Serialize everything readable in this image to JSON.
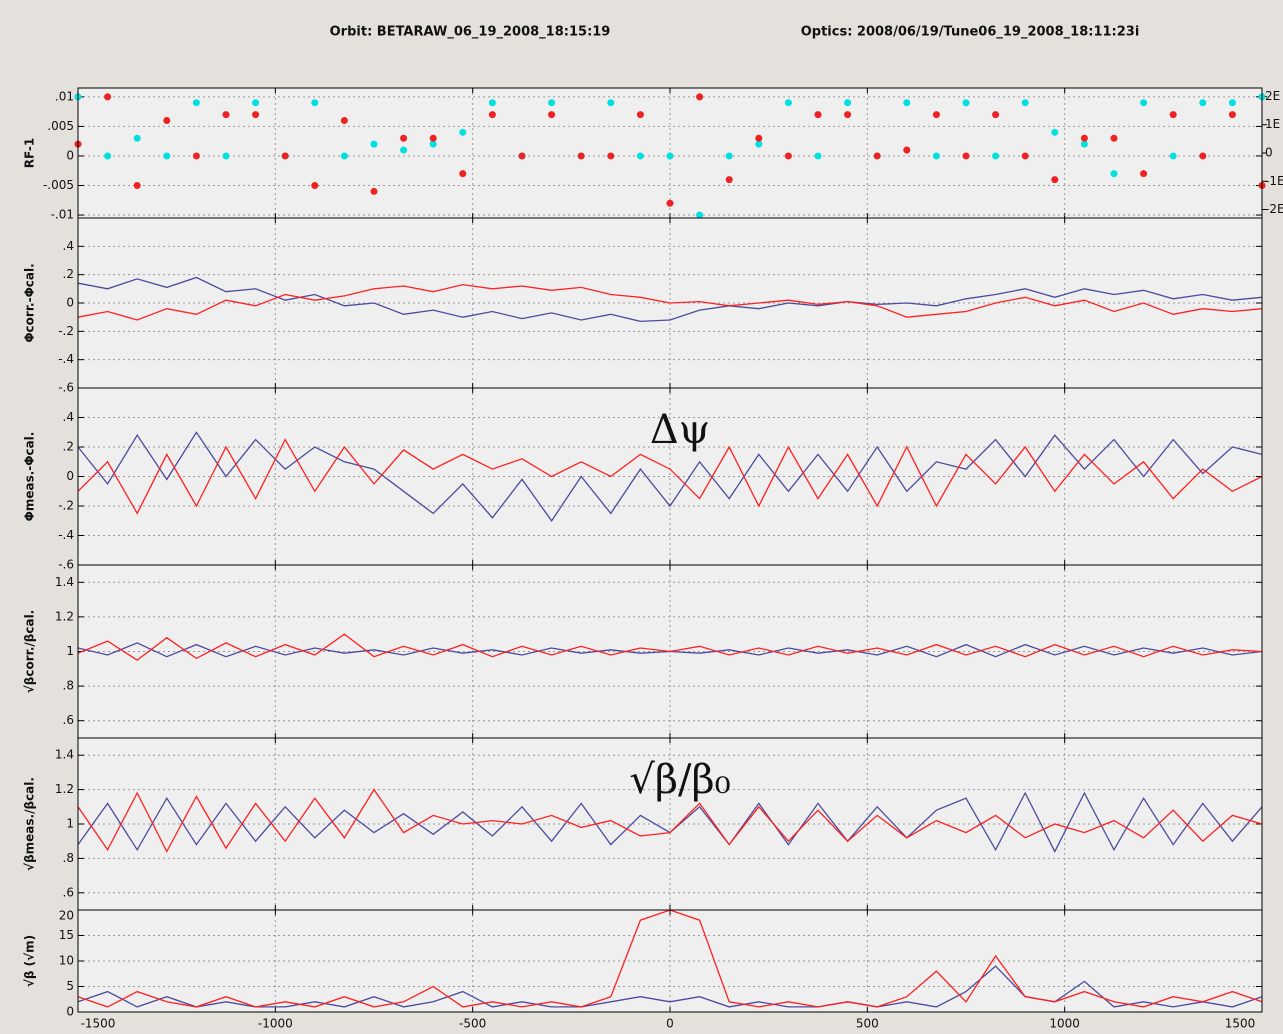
{
  "header": {
    "orbit": "Orbit: BETARAW_06_19_2008_18:15:19",
    "optics": "Optics: 2008/06/19/Tune06_19_2008_18:11:23i"
  },
  "chart_data": [
    {
      "type": "scatter",
      "y_label": "RF-1",
      "ylim": [
        -0.0105,
        0.0115
      ],
      "yticks": [
        {
          "value": 0.01,
          "label": ".01"
        },
        {
          "value": 0.005,
          "label": ".005"
        },
        0,
        {
          "value": -0.005,
          "label": "-.005"
        },
        {
          "value": -0.01,
          "label": "-.01"
        }
      ],
      "y2lim": [
        -2.3,
        2.3
      ],
      "y2ticks": [
        {
          "value": 2,
          "label": "2E"
        },
        {
          "value": 1,
          "label": "1E"
        },
        0,
        {
          "value": -1,
          "label": "-1E"
        },
        {
          "value": -2,
          "label": "-2E"
        }
      ],
      "x": [
        -1500,
        -1425,
        -1350,
        -1275,
        -1200,
        -1125,
        -1050,
        -975,
        -900,
        -825,
        -750,
        -675,
        -600,
        -525,
        -450,
        -375,
        -300,
        -225,
        -150,
        -75,
        0,
        75,
        150,
        225,
        300,
        375,
        450,
        525,
        600,
        675,
        750,
        825,
        900,
        975,
        1050,
        1125,
        1200,
        1275,
        1350,
        1425,
        1500
      ],
      "series": [
        {
          "name": "cyan",
          "color": "#00e0e0",
          "values": [
            0.01,
            0,
            0.003,
            0,
            0.009,
            0,
            0.009,
            0,
            0.009,
            0,
            0.002,
            0.001,
            0.002,
            0.004,
            0.009,
            0,
            0.009,
            0,
            0.009,
            0,
            0,
            -0.01,
            0,
            0.002,
            0.009,
            0,
            0.009,
            0,
            0.009,
            0,
            0.009,
            0,
            0.009,
            0.004,
            0.002,
            -0.003,
            0.009,
            0,
            0.009,
            0.009,
            0.01
          ]
        },
        {
          "name": "red",
          "color": "#ee2222",
          "values": [
            0.002,
            0.01,
            -0.005,
            0.006,
            0,
            0.007,
            0.007,
            0,
            -0.005,
            0.006,
            -0.006,
            0.003,
            0.003,
            -0.003,
            0.007,
            0,
            0.007,
            0,
            0,
            0.007,
            -0.008,
            0.01,
            -0.004,
            0.003,
            0,
            0.007,
            0.007,
            0,
            0.001,
            0.007,
            0,
            0.007,
            0,
            -0.004,
            0.003,
            0.003,
            -0.003,
            0.007,
            0,
            0.007,
            -0.005
          ]
        }
      ]
    },
    {
      "type": "line",
      "y_label": "Φcorr.-Φcal.",
      "ylim": [
        -0.6,
        0.6
      ],
      "yticks": [
        {
          "value": 0.4,
          "label": ".4"
        },
        {
          "value": 0.2,
          "label": ".2"
        },
        0,
        {
          "value": -0.2,
          "label": "-.2"
        },
        {
          "value": -0.4,
          "label": "-.4"
        },
        {
          "value": -0.6,
          "label": "-.6"
        }
      ],
      "x": [
        -1500,
        -1425,
        -1350,
        -1275,
        -1200,
        -1125,
        -1050,
        -975,
        -900,
        -825,
        -750,
        -675,
        -600,
        -525,
        -450,
        -375,
        -300,
        -225,
        -150,
        -75,
        0,
        75,
        150,
        225,
        300,
        375,
        450,
        525,
        600,
        675,
        750,
        825,
        900,
        975,
        1050,
        1125,
        1200,
        1275,
        1350,
        1425,
        1500
      ],
      "series": [
        {
          "name": "blue",
          "color": "#4b4b9e",
          "values": [
            0.14,
            0.1,
            0.17,
            0.11,
            0.18,
            0.08,
            0.1,
            0.02,
            0.06,
            -0.02,
            0,
            -0.08,
            -0.05,
            -0.1,
            -0.06,
            -0.11,
            -0.07,
            -0.12,
            -0.08,
            -0.13,
            -0.12,
            -0.05,
            -0.02,
            -0.04,
            0,
            -0.02,
            0.01,
            -0.01,
            0,
            -0.02,
            0.03,
            0.06,
            0.1,
            0.04,
            0.1,
            0.06,
            0.09,
            0.03,
            0.06,
            0.02,
            0.04
          ]
        },
        {
          "name": "red",
          "color": "#ff2020",
          "values": [
            -0.1,
            -0.06,
            -0.12,
            -0.04,
            -0.08,
            0.02,
            -0.02,
            0.06,
            0.02,
            0.05,
            0.1,
            0.12,
            0.08,
            0.13,
            0.1,
            0.12,
            0.09,
            0.11,
            0.06,
            0.04,
            0,
            0.01,
            -0.02,
            0,
            0.02,
            -0.01,
            0.01,
            -0.02,
            -0.1,
            -0.08,
            -0.06,
            0,
            0.04,
            -0.02,
            0.02,
            -0.06,
            0,
            -0.08,
            -0.04,
            -0.06,
            -0.04
          ]
        }
      ]
    },
    {
      "type": "line",
      "y_label": "Φmeas.-Φcal.",
      "annotation": "Δψ",
      "ylim": [
        -0.6,
        0.6
      ],
      "yticks": [
        {
          "value": 0.4,
          "label": ".4"
        },
        {
          "value": 0.2,
          "label": ".2"
        },
        0,
        {
          "value": -0.2,
          "label": "-.2"
        },
        {
          "value": -0.4,
          "label": "-.4"
        },
        {
          "value": -0.6,
          "label": "-.6"
        }
      ],
      "x": [
        -1500,
        -1425,
        -1350,
        -1275,
        -1200,
        -1125,
        -1050,
        -975,
        -900,
        -825,
        -750,
        -675,
        -600,
        -525,
        -450,
        -375,
        -300,
        -225,
        -150,
        -75,
        0,
        75,
        150,
        225,
        300,
        375,
        450,
        525,
        600,
        675,
        750,
        825,
        900,
        975,
        1050,
        1125,
        1200,
        1275,
        1350,
        1425,
        1500
      ],
      "series": [
        {
          "name": "blue",
          "color": "#4b4b9e",
          "values": [
            0.2,
            -0.05,
            0.28,
            -0.02,
            0.3,
            0,
            0.25,
            0.05,
            0.2,
            0.1,
            0.05,
            -0.1,
            -0.25,
            -0.05,
            -0.28,
            -0.02,
            -0.3,
            0,
            -0.25,
            0.05,
            -0.2,
            0.1,
            -0.15,
            0.15,
            -0.1,
            0.15,
            -0.1,
            0.2,
            -0.1,
            0.1,
            0.05,
            0.25,
            0,
            0.28,
            0.05,
            0.25,
            0,
            0.25,
            0.02,
            0.2,
            0.15
          ]
        },
        {
          "name": "red",
          "color": "#ff2020",
          "values": [
            -0.1,
            0.1,
            -0.25,
            0.15,
            -0.2,
            0.2,
            -0.15,
            0.25,
            -0.1,
            0.2,
            -0.05,
            0.18,
            0.05,
            0.15,
            0.05,
            0.12,
            0,
            0.1,
            0,
            0.15,
            0.05,
            -0.15,
            0.2,
            -0.2,
            0.2,
            -0.15,
            0.15,
            -0.2,
            0.2,
            -0.2,
            0.15,
            -0.05,
            0.2,
            -0.1,
            0.15,
            -0.05,
            0.1,
            -0.15,
            0.05,
            -0.1,
            0
          ]
        }
      ]
    },
    {
      "type": "line",
      "y_label": "√βcorr./βcal.",
      "ylim": [
        0.5,
        1.5
      ],
      "yticks": [
        1.4,
        1.2,
        1,
        {
          "value": 0.8,
          "label": ".8"
        },
        {
          "value": 0.6,
          "label": ".6"
        }
      ],
      "x": [
        -1500,
        -1425,
        -1350,
        -1275,
        -1200,
        -1125,
        -1050,
        -975,
        -900,
        -825,
        -750,
        -675,
        -600,
        -525,
        -450,
        -375,
        -300,
        -225,
        -150,
        -75,
        0,
        75,
        150,
        225,
        300,
        375,
        450,
        525,
        600,
        675,
        750,
        825,
        900,
        975,
        1050,
        1125,
        1200,
        1275,
        1350,
        1425,
        1500
      ],
      "series": [
        {
          "name": "blue",
          "color": "#4b4b9e",
          "values": [
            1.02,
            0.98,
            1.05,
            0.97,
            1.04,
            0.97,
            1.03,
            0.98,
            1.02,
            0.99,
            1.01,
            0.98,
            1.02,
            0.99,
            1.01,
            0.98,
            1.02,
            0.99,
            1.01,
            0.99,
            1,
            0.99,
            1.01,
            0.98,
            1.02,
            0.99,
            1.01,
            0.98,
            1.03,
            0.97,
            1.04,
            0.97,
            1.04,
            0.98,
            1.03,
            0.98,
            1.02,
            0.99,
            1.02,
            0.98,
            1
          ]
        },
        {
          "name": "red",
          "color": "#ff2020",
          "values": [
            0.99,
            1.06,
            0.95,
            1.08,
            0.96,
            1.05,
            0.97,
            1.04,
            0.98,
            1.1,
            0.97,
            1.03,
            0.98,
            1.04,
            0.97,
            1.03,
            0.98,
            1.03,
            0.98,
            1.02,
            1,
            1.03,
            0.98,
            1.02,
            0.98,
            1.03,
            0.99,
            1.02,
            0.98,
            1.04,
            0.98,
            1.03,
            0.97,
            1.04,
            0.98,
            1.03,
            0.97,
            1.03,
            0.98,
            1.01,
            1
          ]
        }
      ]
    },
    {
      "type": "line",
      "y_label": "√βmeas./βcal.",
      "annotation": "√β/β₀",
      "ylim": [
        0.5,
        1.5
      ],
      "yticks": [
        1.4,
        1.2,
        1,
        {
          "value": 0.8,
          "label": ".8"
        },
        {
          "value": 0.6,
          "label": ".6"
        }
      ],
      "x": [
        -1500,
        -1425,
        -1350,
        -1275,
        -1200,
        -1125,
        -1050,
        -975,
        -900,
        -825,
        -750,
        -675,
        -600,
        -525,
        -450,
        -375,
        -300,
        -225,
        -150,
        -75,
        0,
        75,
        150,
        225,
        300,
        375,
        450,
        525,
        600,
        675,
        750,
        825,
        900,
        975,
        1050,
        1125,
        1200,
        1275,
        1350,
        1425,
        1500
      ],
      "series": [
        {
          "name": "blue",
          "color": "#4b4b9e",
          "values": [
            0.88,
            1.12,
            0.85,
            1.15,
            0.88,
            1.12,
            0.9,
            1.1,
            0.92,
            1.08,
            0.95,
            1.06,
            0.94,
            1.07,
            0.93,
            1.1,
            0.9,
            1.12,
            0.88,
            1.05,
            0.95,
            1.1,
            0.88,
            1.12,
            0.88,
            1.12,
            0.9,
            1.1,
            0.92,
            1.08,
            1.15,
            0.85,
            1.18,
            0.84,
            1.18,
            0.85,
            1.15,
            0.88,
            1.12,
            0.9,
            1.1
          ]
        },
        {
          "name": "red",
          "color": "#ff2020",
          "values": [
            1.1,
            0.85,
            1.18,
            0.84,
            1.16,
            0.86,
            1.12,
            0.9,
            1.15,
            0.92,
            1.2,
            0.95,
            1.05,
            1.0,
            1.02,
            1.0,
            1.05,
            0.98,
            1.02,
            0.93,
            0.95,
            1.12,
            0.88,
            1.1,
            0.9,
            1.08,
            0.9,
            1.05,
            0.92,
            1.02,
            0.95,
            1.05,
            0.92,
            1.0,
            0.95,
            1.02,
            0.92,
            1.08,
            0.9,
            1.05,
            1.0
          ]
        }
      ]
    },
    {
      "type": "line",
      "y_label": "√β (√m)",
      "ylim": [
        0,
        20
      ],
      "yticks": [
        20,
        15,
        10,
        5,
        0
      ],
      "xlim": [
        -1500,
        1500
      ],
      "xticks": [
        -1500,
        -1000,
        -500,
        0,
        500,
        1000,
        1500
      ],
      "x": [
        -1500,
        -1425,
        -1350,
        -1275,
        -1200,
        -1125,
        -1050,
        -975,
        -900,
        -825,
        -750,
        -675,
        -600,
        -525,
        -450,
        -375,
        -300,
        -225,
        -150,
        -75,
        0,
        75,
        150,
        225,
        300,
        375,
        450,
        525,
        600,
        675,
        750,
        825,
        900,
        975,
        1050,
        1125,
        1200,
        1275,
        1350,
        1425,
        1500
      ],
      "series": [
        {
          "name": "blue",
          "color": "#4b4b9e",
          "values": [
            2,
            4,
            1,
            3,
            1,
            2,
            1,
            1,
            2,
            1,
            3,
            1,
            2,
            4,
            1,
            2,
            1,
            1,
            2,
            3,
            2,
            3,
            1,
            2,
            1,
            1,
            2,
            1,
            2,
            1,
            4,
            9,
            3,
            2,
            6,
            1,
            2,
            1,
            2,
            1,
            3
          ]
        },
        {
          "name": "red",
          "color": "#ff2020",
          "values": [
            3,
            1,
            4,
            2,
            1,
            3,
            1,
            2,
            1,
            3,
            1,
            2,
            5,
            1,
            2,
            1,
            2,
            1,
            3,
            18,
            20,
            18,
            2,
            1,
            2,
            1,
            2,
            1,
            3,
            8,
            2,
            11,
            3,
            2,
            4,
            2,
            1,
            3,
            2,
            4,
            2
          ]
        }
      ]
    }
  ]
}
